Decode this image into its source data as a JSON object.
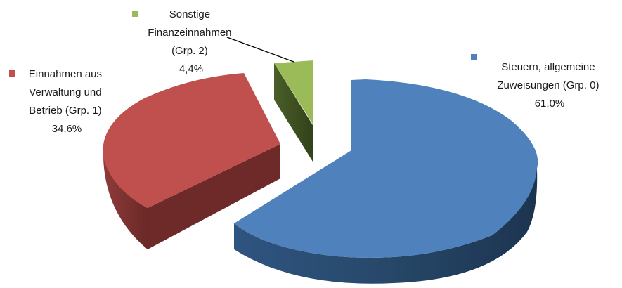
{
  "chart_data": {
    "type": "pie",
    "variant": "3d-exploded",
    "slices": [
      {
        "key": "s0",
        "label_lines": [
          "Steuern, allgemeine",
          "Zuweisungen (Grp. 0)"
        ],
        "value_label": "61,0%",
        "value": 61.0,
        "color": "#4f81bd",
        "side_color": "#253f60"
      },
      {
        "key": "s1",
        "label_lines": [
          "Einnahmen aus",
          "Verwaltung und",
          "Betrieb (Grp. 1)"
        ],
        "value_label": "34,6%",
        "value": 34.6,
        "color": "#c0504d",
        "side_color": "#6e2b2a"
      },
      {
        "key": "s2",
        "label_lines": [
          "Sonstige",
          "Finanzeinnahmen",
          "(Grp. 2)"
        ],
        "value_label": "4,4%",
        "value": 4.4,
        "color": "#9bbb59",
        "side_color": "#3f5122"
      }
    ]
  }
}
